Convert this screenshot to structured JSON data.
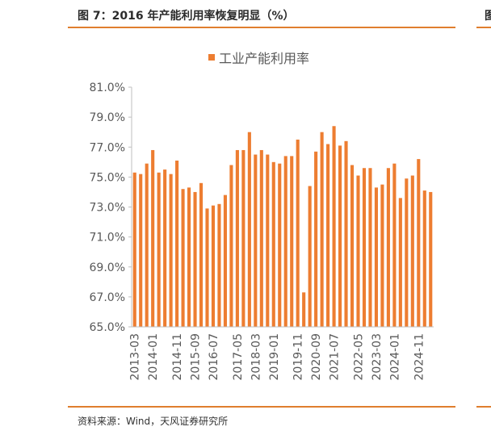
{
  "header": {
    "figure_title": "图 7：2016 年产能利用率恢复明显（%）",
    "next_figure_title": "图"
  },
  "footer": {
    "source": "资料来源：Wind，天风证券研究所"
  },
  "colors": {
    "accent": "#e07e2e",
    "bar": "#ed7d31",
    "axis_text": "#595959",
    "axis_line": "#bfbfbf"
  },
  "chart_data": {
    "type": "bar",
    "title": "",
    "xlabel": "",
    "ylabel": "",
    "legend": {
      "label": "工业产能利用率",
      "position": "top"
    },
    "ylim": [
      65,
      81
    ],
    "yticks": [
      "65.0%",
      "67.0%",
      "69.0%",
      "71.0%",
      "73.0%",
      "75.0%",
      "77.0%",
      "79.0%",
      "81.0%"
    ],
    "xtick_labels": [
      "2013-03",
      "2014-01",
      "2014-11",
      "2015-09",
      "2016-07",
      "2017-05",
      "2018-03",
      "2019-01",
      "2019-11",
      "2020-09",
      "2021-07",
      "2022-05",
      "2023-03",
      "2024-01",
      "2024-11"
    ],
    "grid": false,
    "series": [
      {
        "name": "工业产能利用率",
        "values": [
          75.3,
          75.2,
          75.9,
          76.8,
          75.3,
          75.5,
          75.2,
          76.1,
          74.2,
          74.3,
          74.0,
          74.6,
          72.9,
          73.1,
          73.2,
          73.8,
          75.8,
          76.8,
          76.8,
          78.0,
          76.5,
          76.8,
          76.5,
          76.0,
          75.9,
          76.4,
          76.4,
          77.5,
          67.3,
          74.4,
          76.7,
          78.0,
          77.2,
          78.4,
          77.1,
          77.4,
          75.8,
          75.1,
          75.6,
          75.6,
          74.3,
          74.5,
          75.6,
          75.9,
          73.6,
          74.9,
          75.1,
          76.2,
          74.1,
          74.0
        ]
      }
    ]
  }
}
